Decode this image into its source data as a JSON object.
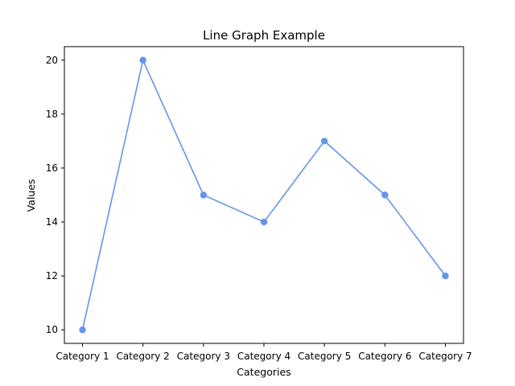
{
  "chart_data": {
    "type": "line",
    "title": "Line Graph Example",
    "xlabel": "Categories",
    "ylabel": "Values",
    "categories": [
      "Category 1",
      "Category 2",
      "Category 3",
      "Category 4",
      "Category 5",
      "Category 6",
      "Category 7"
    ],
    "series": [
      {
        "values": [
          10,
          20,
          15,
          14,
          17,
          15,
          12
        ],
        "color": "#6495ed",
        "marker": "circle"
      }
    ],
    "ylim": [
      9.5,
      20.5
    ],
    "yticks": [
      "10",
      "12",
      "14",
      "16",
      "18",
      "20"
    ],
    "grid": false,
    "legend": "none"
  }
}
